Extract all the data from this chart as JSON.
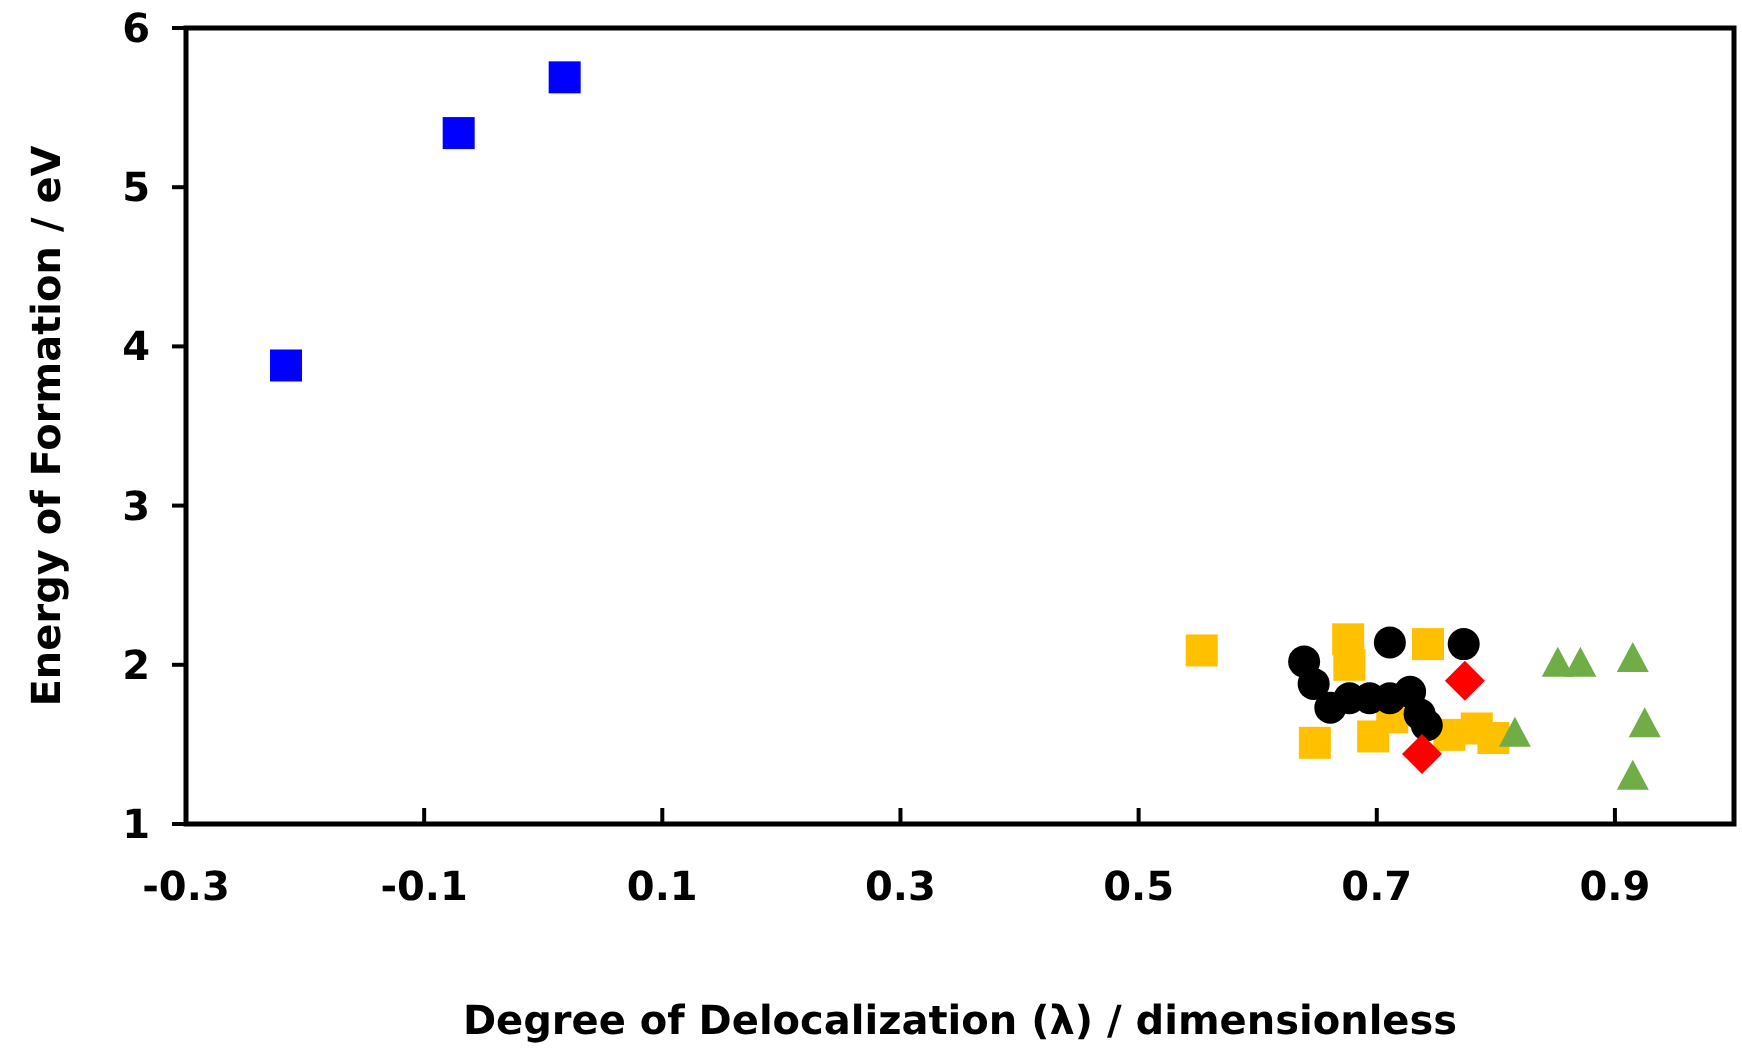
{
  "chart_data": {
    "type": "scatter",
    "xlabel": "Degree of Delocalization (λ) / dimensionless",
    "ylabel": "Energy of Formation / eV",
    "xlim": [
      -0.3,
      1.0
    ],
    "xticks": [
      -0.3,
      -0.1,
      0.1,
      0.3,
      0.5,
      0.7,
      0.9
    ],
    "ylim": [
      1,
      6
    ],
    "yticks": [
      1,
      2,
      3,
      4,
      5,
      6
    ],
    "grid": false,
    "series": [
      {
        "color": "#0000ff",
        "marker": "square",
        "x": [
          -0.216,
          -0.071,
          0.018
        ],
        "values": [
          3.88,
          5.34,
          5.69
        ]
      },
      {
        "color": "#ffc000",
        "marker": "square",
        "x": [
          0.553,
          0.676,
          0.677,
          0.743,
          0.648,
          0.697,
          0.713,
          0.761,
          0.784,
          0.798
        ],
        "values": [
          2.09,
          2.16,
          2.0,
          2.13,
          1.51,
          1.55,
          1.67,
          1.56,
          1.6,
          1.54
        ]
      },
      {
        "color": "#000000",
        "marker": "circle",
        "x": [
          0.711,
          0.773,
          0.639,
          0.647,
          0.661,
          0.677,
          0.694,
          0.711,
          0.728,
          0.736,
          0.742
        ],
        "values": [
          2.14,
          2.13,
          2.02,
          1.88,
          1.73,
          1.79,
          1.79,
          1.79,
          1.83,
          1.69,
          1.62
        ]
      },
      {
        "color": "#ff0000",
        "marker": "diamond",
        "x": [
          0.774,
          0.738
        ],
        "values": [
          1.9,
          1.44
        ]
      },
      {
        "color": "#70ad47",
        "marker": "triangle",
        "x": [
          0.852,
          0.871,
          0.915,
          0.925,
          0.915,
          0.816
        ],
        "values": [
          2.0,
          2.0,
          2.03,
          1.62,
          1.29,
          1.56
        ]
      }
    ]
  }
}
